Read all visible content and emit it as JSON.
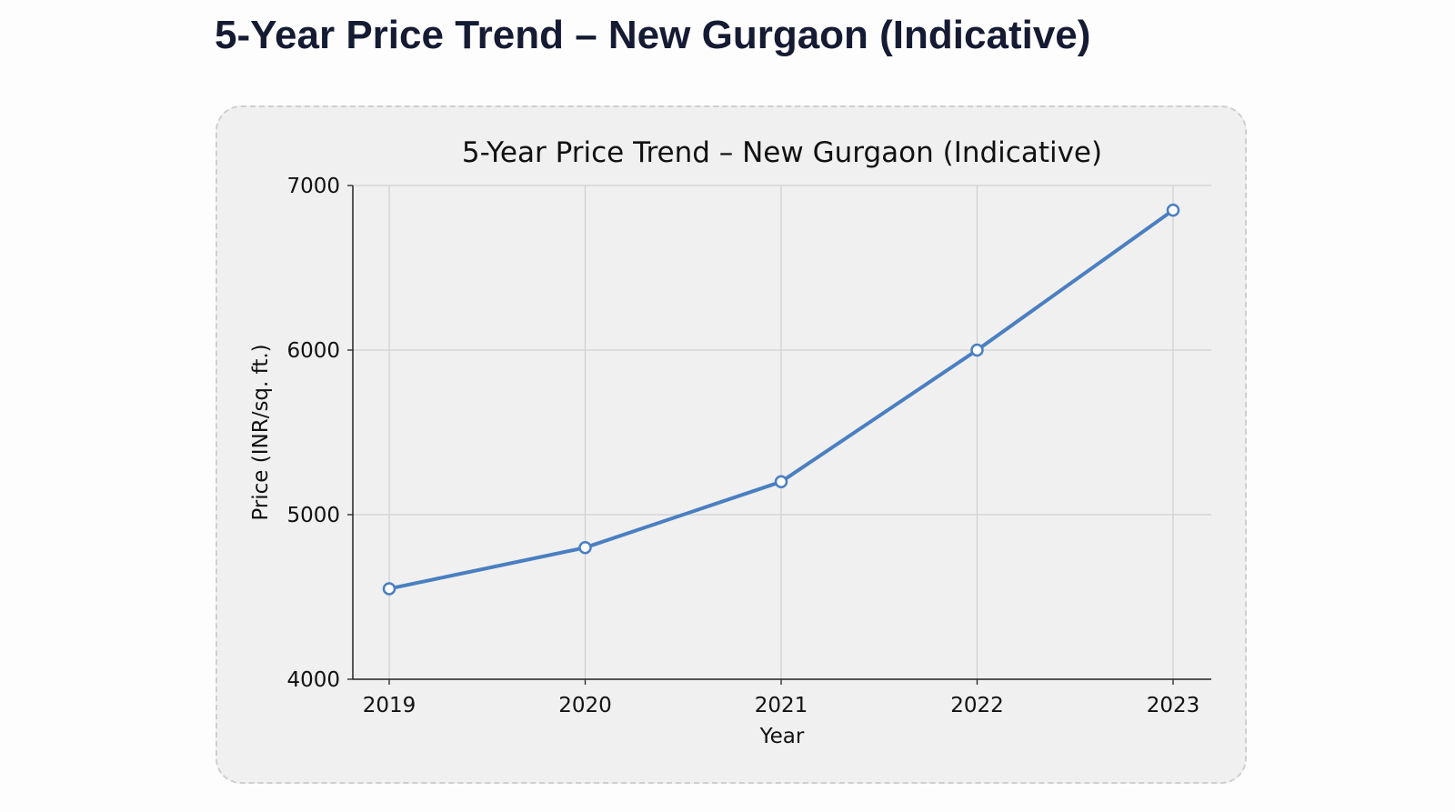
{
  "page": {
    "heading": "5-Year Price Trend – New Gurgaon (Indicative)"
  },
  "chart_data": {
    "type": "line",
    "title": "5-Year Price Trend – New Gurgaon (Indicative)",
    "xlabel": "Year",
    "ylabel": "Price (INR/sq. ft.)",
    "categories": [
      "2019",
      "2020",
      "2021",
      "2022",
      "2023"
    ],
    "series": [
      {
        "values": [
          4550,
          4800,
          5200,
          6000,
          6850
        ],
        "color": "#4a7fc1",
        "marker": "open-circle"
      }
    ],
    "ylim": [
      4000,
      7000
    ],
    "yticks": [
      "4000",
      "5000",
      "6000",
      "7000"
    ],
    "grid": true
  }
}
